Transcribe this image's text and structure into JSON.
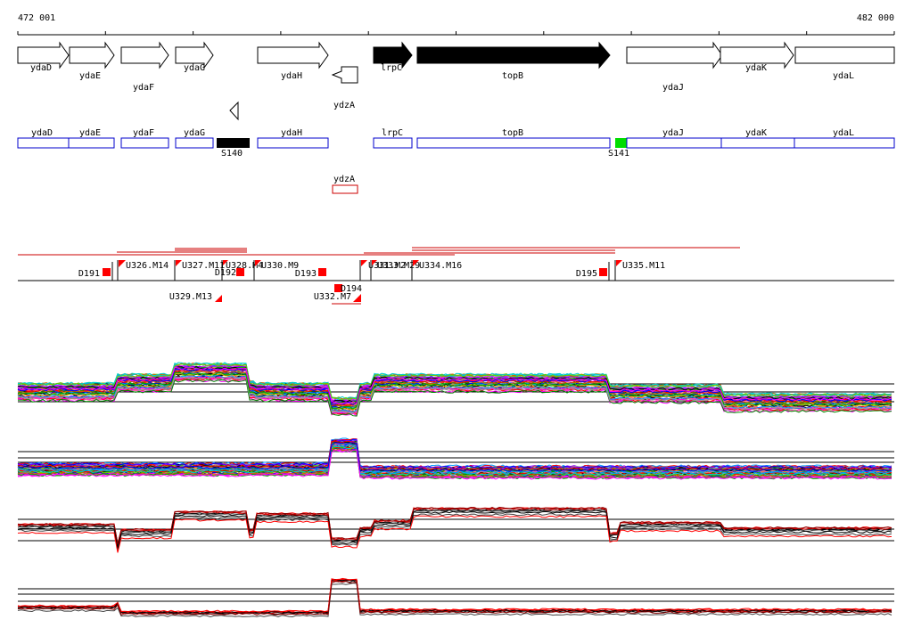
{
  "coords": {
    "start_label": "472 001",
    "end_label": "482 000"
  },
  "colors": {
    "gene_fill_dark": "#000000",
    "annotation_box": "#0000cc",
    "antisense_box": "#cc0000",
    "marker_black": "#000000",
    "marker_green": "#00dd00",
    "segment_line": "#cc0000",
    "tu_flag": "#ff0000"
  },
  "genes": [
    {
      "name": "ydaD",
      "dark": false,
      "dir": "+"
    },
    {
      "name": "ydaE",
      "dark": false,
      "dir": "+"
    },
    {
      "name": "ydaF",
      "dark": false,
      "dir": "+"
    },
    {
      "name": "ydaG",
      "dark": false,
      "dir": "+"
    },
    {
      "name": "ydaH",
      "dark": false,
      "dir": "+"
    },
    {
      "name": "ydzA",
      "dark": false,
      "dir": "-"
    },
    {
      "name": "lrpC",
      "dark": true,
      "dir": "+"
    },
    {
      "name": "topB",
      "dark": true,
      "dir": "+"
    },
    {
      "name": "ydaJ",
      "dark": false,
      "dir": "+"
    },
    {
      "name": "ydaK",
      "dark": false,
      "dir": "+"
    },
    {
      "name": "ydaL",
      "dark": false,
      "dir": "+"
    }
  ],
  "annotation_boxes": [
    {
      "name": "ydaD"
    },
    {
      "name": "ydaE"
    },
    {
      "name": "ydaF"
    },
    {
      "name": "ydaG"
    },
    {
      "name": "ydaH"
    },
    {
      "name": "lrpC"
    },
    {
      "name": "topB"
    },
    {
      "name": "ydaJ"
    },
    {
      "name": "ydaK"
    },
    {
      "name": "ydaL"
    }
  ],
  "antisense_box": {
    "name": "ydzA"
  },
  "markers": [
    {
      "name": "S140",
      "color": "black"
    },
    {
      "name": "S141",
      "color": "green"
    }
  ],
  "downshifts": [
    {
      "name": "D191"
    },
    {
      "name": "D192"
    },
    {
      "name": "D193"
    },
    {
      "name": "D194"
    },
    {
      "name": "D195"
    }
  ],
  "upshifts": [
    {
      "name": "U326.M14"
    },
    {
      "name": "U327.M11"
    },
    {
      "name": "U328.M4"
    },
    {
      "name": "U329.M13"
    },
    {
      "name": "U330.M9"
    },
    {
      "name": "U332.M7"
    },
    {
      "name": "U331.M2"
    },
    {
      "name": "U333.M29"
    },
    {
      "name": "U334.M16"
    },
    {
      "name": "U335.M11"
    }
  ]
}
